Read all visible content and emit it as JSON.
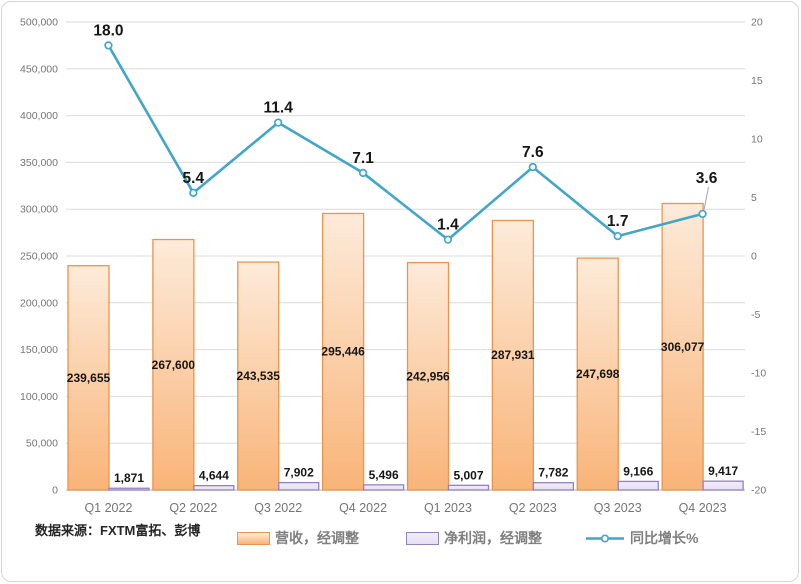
{
  "source_note": "数据来源：FXTM富拓、彭博",
  "chart_data": {
    "type": "combo",
    "categories": [
      "Q1 2022",
      "Q2 2022",
      "Q3 2022",
      "Q4 2022",
      "Q1 2023",
      "Q2 2023",
      "Q3 2023",
      "Q4 2023"
    ],
    "series": [
      {
        "name": "营收，经调整",
        "type": "bar",
        "axis": "left",
        "values": [
          239655,
          267600,
          243535,
          295446,
          242956,
          287931,
          247698,
          306077
        ],
        "labels": [
          "239,655",
          "267,600",
          "243,535",
          "295,446",
          "242,956",
          "287,931",
          "247,698",
          "306,077"
        ]
      },
      {
        "name": "净利润，经调整",
        "type": "bar",
        "axis": "left",
        "values": [
          1871,
          4644,
          7902,
          5496,
          5007,
          7782,
          9166,
          9417
        ],
        "labels": [
          "1,871",
          "4,644",
          "7,902",
          "5,496",
          "5,007",
          "7,782",
          "9,166",
          "9,417"
        ]
      },
      {
        "name": "同比增长%",
        "type": "line",
        "axis": "right",
        "values": [
          18.0,
          5.4,
          11.4,
          7.1,
          1.4,
          7.6,
          1.7,
          3.6
        ],
        "labels": [
          "18.0",
          "5.4",
          "11.4",
          "7.1",
          "1.4",
          "7.6",
          "1.7",
          "3.6"
        ]
      }
    ],
    "left_axis": {
      "min": 0,
      "max": 500000,
      "step": 50000,
      "tick_labels": [
        "0",
        "50,000",
        "100,000",
        "150,000",
        "200,000",
        "250,000",
        "300,000",
        "350,000",
        "400,000",
        "450,000",
        "500,000"
      ]
    },
    "right_axis": {
      "min": -20,
      "max": 20,
      "step": 5,
      "tick_labels": [
        "20",
        "15",
        "10",
        "5",
        "0",
        "-5",
        "-10",
        "-15",
        "-20"
      ]
    },
    "grid": true,
    "legend_position": "bottom"
  },
  "colors": {
    "revenue_fill_top": "#FDEBDA",
    "revenue_fill_bottom": "#F9B478",
    "revenue_border": "#E8954F",
    "profit_fill_top": "#F0EDF8",
    "profit_fill_bottom": "#E6E0F2",
    "profit_border": "#9383BE",
    "growth_line": "#41A6C7",
    "marker_fill": "#FFFFFF",
    "grid": "#DBDBDB",
    "axis_line": "#C0C0C0",
    "axis_text": "#757575",
    "label_text": "#161616",
    "legend_text": "#7F7F7F",
    "source_text": "#262626",
    "leader_line": "#A6A6A6",
    "frame_border": "#D7D7D7"
  }
}
